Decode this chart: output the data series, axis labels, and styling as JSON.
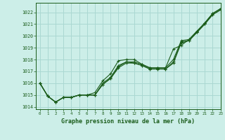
{
  "title": "Graphe pression niveau de la mer (hPa)",
  "background_color": "#cceee8",
  "grid_color": "#aad8d2",
  "line_color": "#1a5c1a",
  "xlim": [
    -0.5,
    23
  ],
  "ylim": [
    1013.8,
    1022.8
  ],
  "yticks": [
    1014,
    1015,
    1016,
    1017,
    1018,
    1019,
    1020,
    1021,
    1022
  ],
  "xticks": [
    0,
    1,
    2,
    3,
    4,
    5,
    6,
    7,
    8,
    9,
    10,
    11,
    12,
    13,
    14,
    15,
    16,
    17,
    18,
    19,
    20,
    21,
    22,
    23
  ],
  "series": [
    [
      1016.0,
      1014.9,
      1014.4,
      1014.8,
      1014.8,
      1015.0,
      1015.0,
      1015.0,
      1015.9,
      1016.4,
      1017.3,
      1017.7,
      1017.7,
      1017.5,
      1017.2,
      1017.2,
      1017.2,
      1017.7,
      1019.4,
      1019.6,
      1020.3,
      1021.0,
      1021.8,
      1022.2
    ],
    [
      1016.0,
      1014.9,
      1014.4,
      1014.8,
      1014.8,
      1015.0,
      1015.0,
      1015.0,
      1015.9,
      1016.4,
      1017.4,
      1017.8,
      1017.7,
      1017.5,
      1017.2,
      1017.2,
      1017.2,
      1017.8,
      1019.5,
      1019.6,
      1020.3,
      1021.0,
      1021.8,
      1022.2
    ],
    [
      1016.0,
      1014.9,
      1014.4,
      1014.8,
      1014.8,
      1015.0,
      1015.0,
      1015.0,
      1016.0,
      1016.5,
      1017.5,
      1017.8,
      1017.8,
      1017.6,
      1017.3,
      1017.3,
      1017.3,
      1018.0,
      1019.6,
      1019.7,
      1020.4,
      1021.1,
      1021.9,
      1022.3
    ],
    [
      1016.0,
      1014.9,
      1014.4,
      1014.8,
      1014.8,
      1015.0,
      1015.0,
      1015.2,
      1016.2,
      1016.8,
      1017.9,
      1018.0,
      1018.0,
      1017.6,
      1017.3,
      1017.3,
      1017.3,
      1018.9,
      1019.2,
      1019.7,
      1020.4,
      1021.1,
      1021.9,
      1022.3
    ]
  ]
}
